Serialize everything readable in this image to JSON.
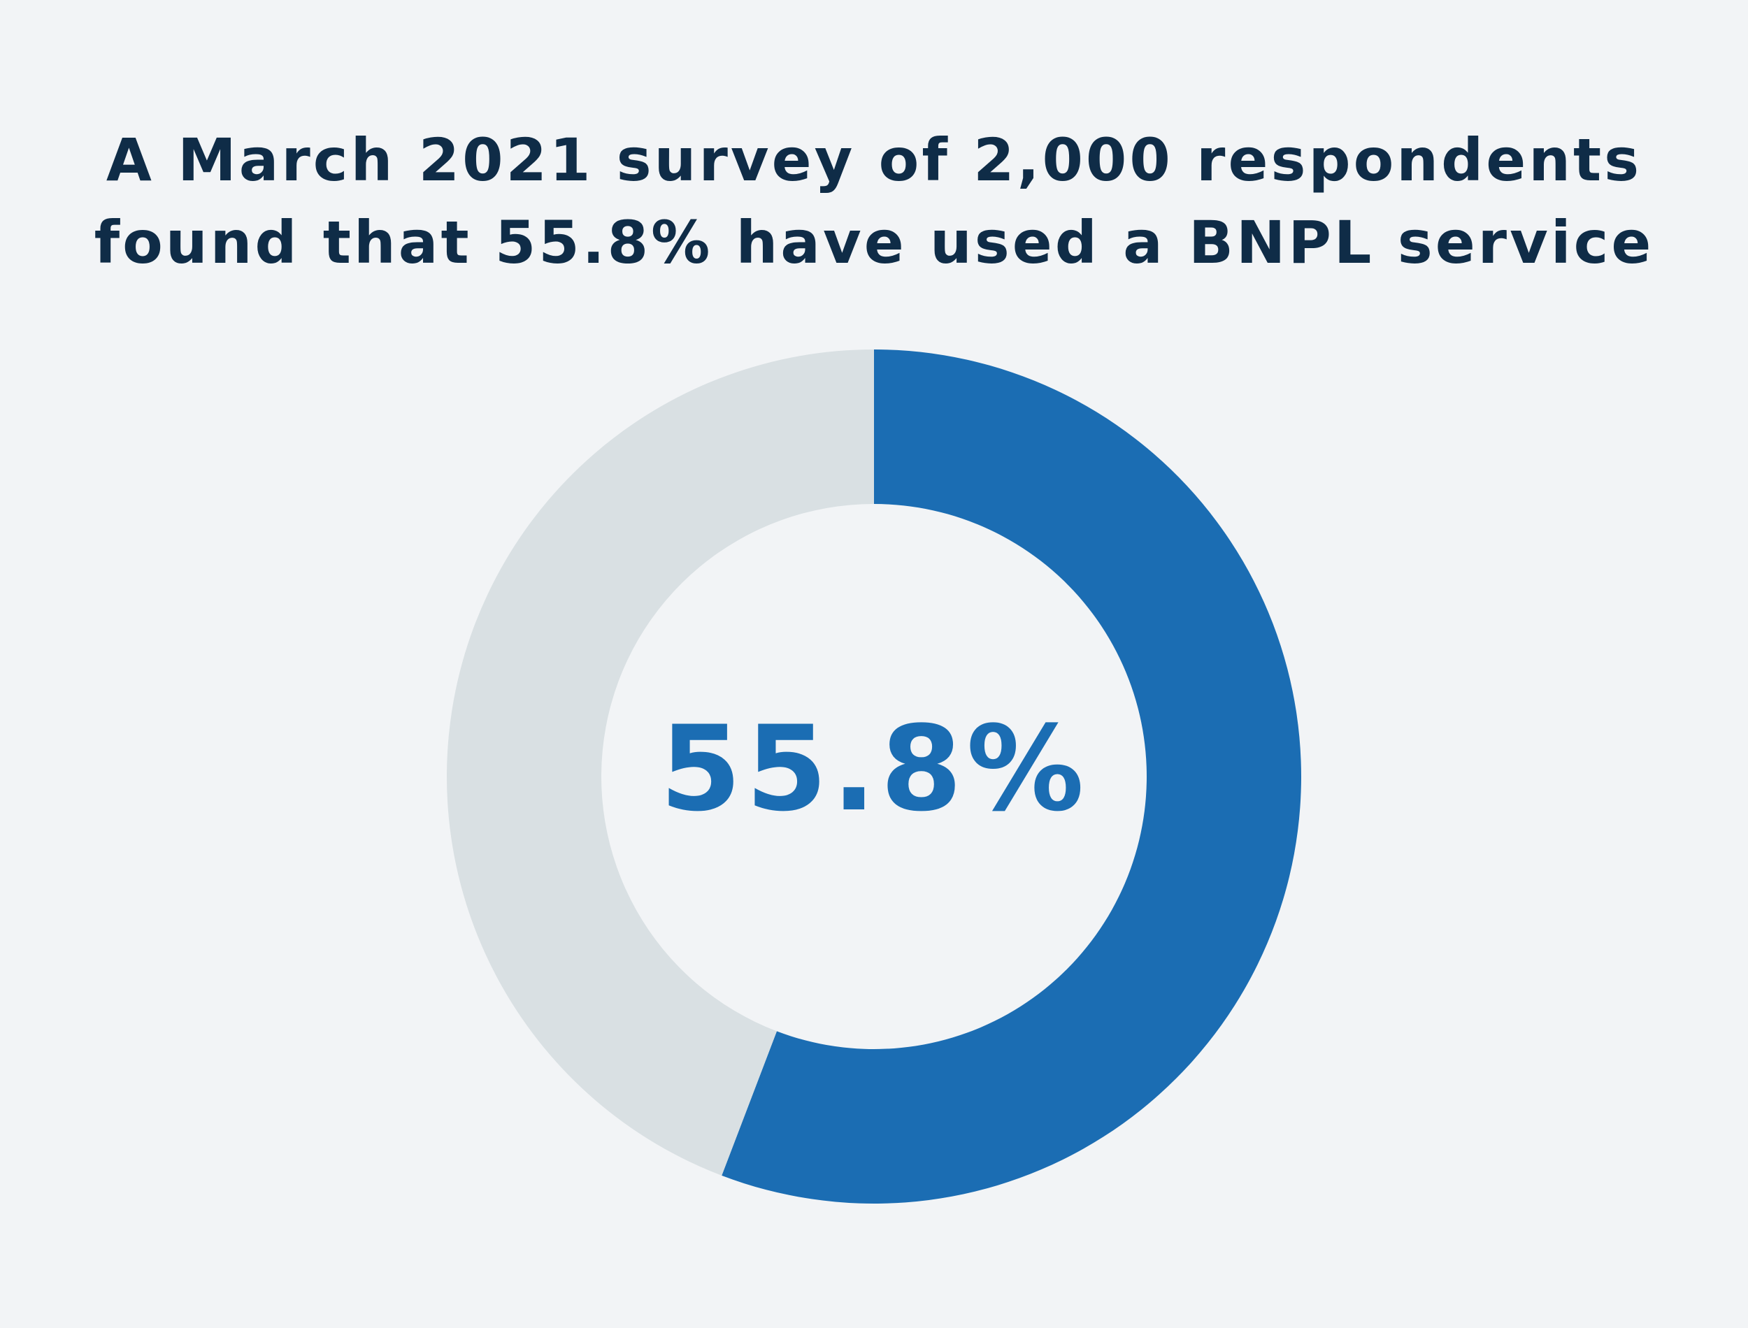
{
  "chart_data": {
    "type": "pie",
    "variant": "donut",
    "title": [
      "A March 2021 survey of 2,000 respondents",
      "found that 55.8% have used a BNPL service"
    ],
    "slices": [
      {
        "value": 55.8,
        "color": "#1b6db3"
      },
      {
        "value": 44.2,
        "color": "#d9e0e3"
      }
    ],
    "center_label": "55.8%",
    "center_label_color": "#1b6db3",
    "legend": "none"
  },
  "colors": {
    "background": "#f2f4f6",
    "title": "#0f2c47"
  }
}
